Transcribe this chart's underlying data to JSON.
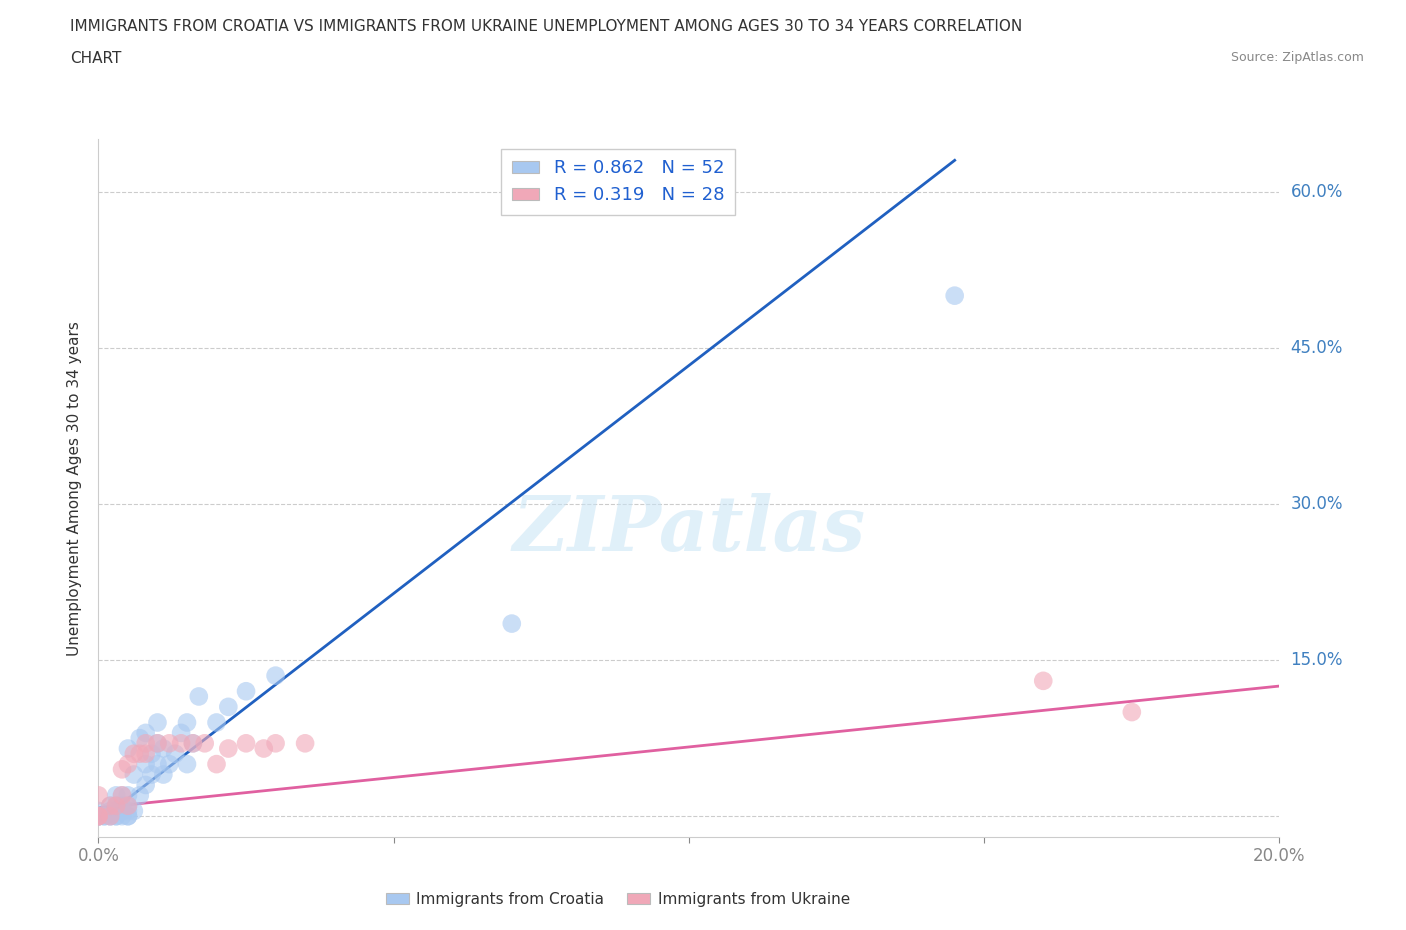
{
  "title_line1": "IMMIGRANTS FROM CROATIA VS IMMIGRANTS FROM UKRAINE UNEMPLOYMENT AMONG AGES 30 TO 34 YEARS CORRELATION",
  "title_line2": "CHART",
  "source": "Source: ZipAtlas.com",
  "ylabel": "Unemployment Among Ages 30 to 34 years",
  "xlim": [
    0,
    0.2
  ],
  "ylim": [
    -0.02,
    0.65
  ],
  "xticks": [
    0.0,
    0.05,
    0.1,
    0.15,
    0.2
  ],
  "yticks": [
    0.0,
    0.15,
    0.3,
    0.45,
    0.6
  ],
  "xticklabels_show": {
    "0.0": "0.0%",
    "0.20": "20.0%"
  },
  "yticklabels": [
    "15.0%",
    "30.0%",
    "45.0%",
    "60.0%"
  ],
  "ytick_values": [
    0.15,
    0.3,
    0.45,
    0.6
  ],
  "croatia_color": "#a8c8f0",
  "ukraine_color": "#f0a8b8",
  "croatia_line_color": "#2060c0",
  "ukraine_line_color": "#e060a0",
  "R_croatia": 0.862,
  "N_croatia": 52,
  "R_ukraine": 0.319,
  "N_ukraine": 28,
  "legend_label_croatia": "Immigrants from Croatia",
  "legend_label_ukraine": "Immigrants from Ukraine",
  "watermark": "ZIPatlas",
  "background_color": "#ffffff",
  "croatia_line_x0": 0.0,
  "croatia_line_y0": -0.005,
  "croatia_line_x1": 0.145,
  "croatia_line_y1": 0.63,
  "ukraine_line_x0": 0.0,
  "ukraine_line_y0": 0.008,
  "ukraine_line_x1": 0.2,
  "ukraine_line_y1": 0.125,
  "croatia_scatter_x": [
    0.0,
    0.0,
    0.0,
    0.0,
    0.001,
    0.001,
    0.002,
    0.002,
    0.002,
    0.002,
    0.003,
    0.003,
    0.003,
    0.003,
    0.003,
    0.004,
    0.004,
    0.004,
    0.004,
    0.005,
    0.005,
    0.005,
    0.005,
    0.005,
    0.005,
    0.006,
    0.006,
    0.007,
    0.007,
    0.008,
    0.008,
    0.008,
    0.009,
    0.009,
    0.01,
    0.01,
    0.01,
    0.011,
    0.011,
    0.012,
    0.013,
    0.014,
    0.015,
    0.015,
    0.016,
    0.017,
    0.02,
    0.022,
    0.025,
    0.03,
    0.07,
    0.145
  ],
  "croatia_scatter_y": [
    0.0,
    0.0,
    0.0,
    0.005,
    0.0,
    0.0,
    0.0,
    0.0,
    0.005,
    0.01,
    0.0,
    0.0,
    0.005,
    0.01,
    0.02,
    0.0,
    0.005,
    0.01,
    0.02,
    0.0,
    0.0,
    0.005,
    0.01,
    0.02,
    0.065,
    0.005,
    0.04,
    0.02,
    0.075,
    0.03,
    0.05,
    0.08,
    0.04,
    0.06,
    0.05,
    0.07,
    0.09,
    0.04,
    0.065,
    0.05,
    0.06,
    0.08,
    0.05,
    0.09,
    0.07,
    0.115,
    0.09,
    0.105,
    0.12,
    0.135,
    0.185,
    0.5
  ],
  "ukraine_scatter_x": [
    0.0,
    0.0,
    0.0,
    0.0,
    0.002,
    0.002,
    0.003,
    0.004,
    0.004,
    0.005,
    0.005,
    0.006,
    0.007,
    0.008,
    0.008,
    0.01,
    0.012,
    0.014,
    0.016,
    0.018,
    0.02,
    0.022,
    0.025,
    0.028,
    0.03,
    0.035,
    0.16,
    0.175
  ],
  "ukraine_scatter_y": [
    0.0,
    0.0,
    0.0,
    0.02,
    0.0,
    0.01,
    0.01,
    0.02,
    0.045,
    0.01,
    0.05,
    0.06,
    0.06,
    0.06,
    0.07,
    0.07,
    0.07,
    0.07,
    0.07,
    0.07,
    0.05,
    0.065,
    0.07,
    0.065,
    0.07,
    0.07,
    0.13,
    0.1
  ]
}
